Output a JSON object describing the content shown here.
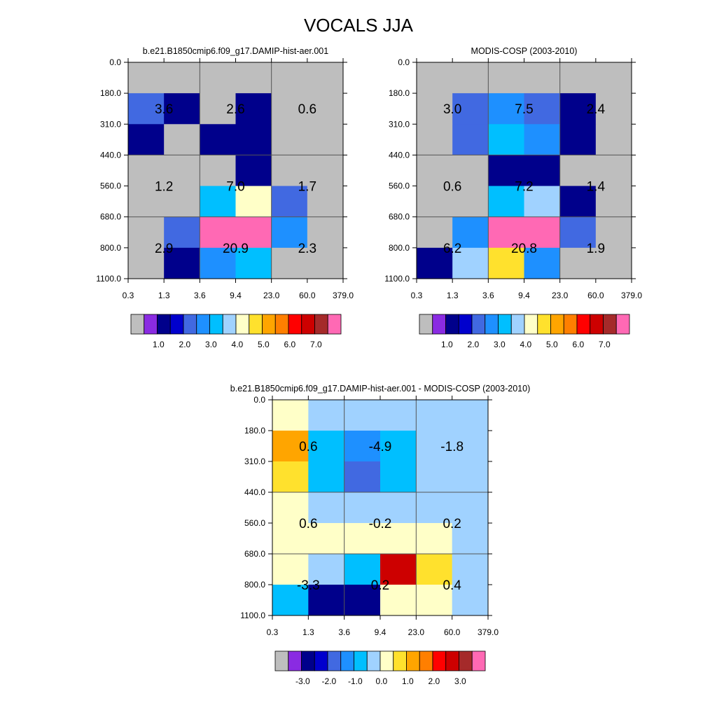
{
  "figure_title": "VOCALS JJA",
  "chart_data": [
    {
      "type": "heatmap",
      "title": "b.e21.B1850cmip6.f09_g17.DAMIP-hist-aer.001",
      "x_ticks": [
        "0.3",
        "1.3",
        "3.6",
        "9.4",
        "23.0",
        "60.0",
        "379.0"
      ],
      "y_ticks": [
        "0.0",
        "180.0",
        "310.0",
        "440.0",
        "560.0",
        "680.0",
        "800.0",
        "1100.0"
      ],
      "grid": true,
      "values": [
        [
          0.0,
          0.0,
          0.0,
          0.0,
          0.0,
          0.0
        ],
        [
          1.5,
          0.5,
          0.0,
          0.5,
          0.0,
          0.0
        ],
        [
          0.5,
          0.0,
          0.5,
          0.5,
          0.0,
          0.0
        ],
        [
          0.0,
          0.0,
          0.0,
          0.5,
          0.0,
          0.0
        ],
        [
          0.0,
          0.0,
          2.5,
          3.5,
          1.5,
          0.0
        ],
        [
          0.0,
          1.5,
          7.5,
          8.0,
          2.0,
          0.0
        ],
        [
          0.0,
          0.5,
          2.0,
          2.5,
          0.0,
          0.0
        ]
      ],
      "box_labels": [
        "3.6",
        "2.6",
        "0.6",
        "1.2",
        "7.0",
        "1.7",
        "2.9",
        "20.9",
        "2.3"
      ],
      "colorbar": {
        "labels": [
          "1.0",
          "2.0",
          "3.0",
          "4.0",
          "5.0",
          "6.0",
          "7.0"
        ],
        "colors": [
          "#bebebe",
          "#8a2be2",
          "#00008b",
          "#0000cd",
          "#4169e1",
          "#1e90ff",
          "#00bfff",
          "#a0d2ff",
          "#ffffc8",
          "#ffe12d",
          "#ffa500",
          "#ff7f00",
          "#ff0000",
          "#cd0000",
          "#a52a2a",
          "#ff69b4"
        ]
      }
    },
    {
      "type": "heatmap",
      "title": "MODIS-COSP (2003-2010)",
      "x_ticks": [
        "0.3",
        "1.3",
        "3.6",
        "9.4",
        "23.0",
        "60.0",
        "379.0"
      ],
      "y_ticks": [
        "0.0",
        "180.0",
        "310.0",
        "440.0",
        "560.0",
        "680.0",
        "800.0",
        "1100.0"
      ],
      "grid": true,
      "values": [
        [
          0.0,
          0.0,
          0.0,
          0.0,
          0.0,
          0.0
        ],
        [
          0.0,
          1.5,
          2.0,
          1.5,
          0.5,
          0.0
        ],
        [
          0.0,
          1.5,
          2.5,
          2.0,
          0.5,
          0.0
        ],
        [
          0.0,
          0.0,
          0.5,
          0.5,
          0.0,
          0.0
        ],
        [
          0.0,
          0.0,
          2.5,
          3.0,
          0.5,
          0.0
        ],
        [
          0.0,
          2.0,
          8.0,
          7.5,
          1.5,
          0.0
        ],
        [
          0.5,
          3.0,
          4.0,
          2.0,
          0.0,
          0.0
        ]
      ],
      "box_labels": [
        "3.0",
        "7.5",
        "2.4",
        "0.6",
        "7.2",
        "1.4",
        "6.2",
        "20.8",
        "1.9"
      ],
      "colorbar": {
        "labels": [
          "1.0",
          "2.0",
          "3.0",
          "4.0",
          "5.0",
          "6.0",
          "7.0"
        ],
        "colors": [
          "#bebebe",
          "#8a2be2",
          "#00008b",
          "#0000cd",
          "#4169e1",
          "#1e90ff",
          "#00bfff",
          "#a0d2ff",
          "#ffffc8",
          "#ffe12d",
          "#ffa500",
          "#ff7f00",
          "#ff0000",
          "#cd0000",
          "#a52a2a",
          "#ff69b4"
        ]
      }
    },
    {
      "type": "heatmap",
      "title": "b.e21.B1850cmip6.f09_g17.DAMIP-hist-aer.001 - MODIS-COSP (2003-2010)",
      "x_ticks": [
        "0.3",
        "1.3",
        "3.6",
        "9.4",
        "23.0",
        "60.0",
        "379.0"
      ],
      "y_ticks": [
        "0.0",
        "180.0",
        "310.0",
        "440.0",
        "560.0",
        "680.0",
        "800.0",
        "1100.0"
      ],
      "grid": true,
      "values": [
        [
          0.25,
          -0.25,
          -0.25,
          -0.25,
          -0.25,
          -0.25
        ],
        [
          1.25,
          -0.75,
          -1.25,
          -0.75,
          -0.25,
          -0.25
        ],
        [
          0.75,
          -0.75,
          -1.75,
          -0.75,
          -0.25,
          -0.25
        ],
        [
          0.25,
          -0.25,
          -0.25,
          -0.25,
          -0.25,
          -0.25
        ],
        [
          0.25,
          0.25,
          0.25,
          0.25,
          0.25,
          -0.25
        ],
        [
          0.25,
          -0.25,
          -0.75,
          2.75,
          0.75,
          -0.25
        ],
        [
          -0.75,
          -2.75,
          -2.75,
          0.25,
          0.25,
          -0.25
        ]
      ],
      "box_labels": [
        "0.6",
        "-4.9",
        "-1.8",
        "0.6",
        "-0.2",
        "0.2",
        "-3.3",
        "0.2",
        "0.4"
      ],
      "colorbar": {
        "labels": [
          "-3.0",
          "-2.0",
          "-1.0",
          "0.0",
          "1.0",
          "2.0",
          "3.0"
        ],
        "colors": [
          "#bebebe",
          "#8a2be2",
          "#00008b",
          "#0000cd",
          "#4169e1",
          "#1e90ff",
          "#00bfff",
          "#a0d2ff",
          "#ffffc8",
          "#ffe12d",
          "#ffa500",
          "#ff7f00",
          "#ff0000",
          "#cd0000",
          "#a52a2a",
          "#ff69b4"
        ]
      }
    }
  ]
}
